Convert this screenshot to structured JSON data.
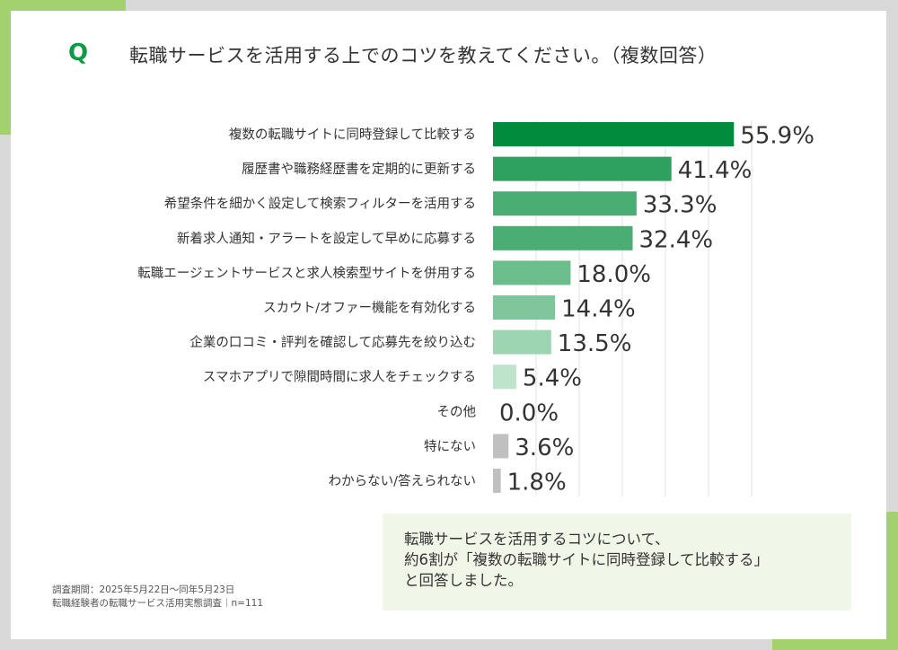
{
  "header": {
    "q_mark": "Q",
    "title": "転職サービスを活用する上でのコツを教えてください。（複数回答）"
  },
  "colors": {
    "accent": "#a3d16e",
    "q_mark": "#0f9a48",
    "gray_bar": "#c0c0c0"
  },
  "chart_data": {
    "type": "bar",
    "orientation": "horizontal",
    "title": "転職サービスを活用する上でのコツを教えてください。（複数回答）",
    "categories": [
      "複数の転職サイトに同時登録して比較する",
      "履歴書や職務経歴書を定期的に更新する",
      "希望条件を細かく設定して検索フィルターを活用する",
      "新着求人通知・アラートを設定して早めに応募する",
      "転職エージェントサービスと求人検索型サイトを併用する",
      "スカウト/オファー機能を有効化する",
      "企業の口コミ・評判を確認して応募先を絞り込む",
      "スマホアプリで隙間時間に求人をチェックする",
      "その他",
      "特にない",
      "わからない/答えられない"
    ],
    "values": [
      55.9,
      41.4,
      33.3,
      32.4,
      18.0,
      14.4,
      13.5,
      5.4,
      0.0,
      3.6,
      1.8
    ],
    "value_labels": [
      "55.9%",
      "41.4%",
      "33.3%",
      "32.4%",
      "18.0%",
      "14.4%",
      "13.5%",
      "5.4%",
      "0.0%",
      "3.6%",
      "1.8%"
    ],
    "bar_colors": [
      "#008c3c",
      "#2ea060",
      "#4aae74",
      "#4aae74",
      "#6bbd8c",
      "#80c69c",
      "#9dd4b2",
      "#bde3cb",
      "#bde3cb",
      "#c0c0c0",
      "#c0c0c0"
    ],
    "unit": "%",
    "xlim": [
      0,
      60
    ],
    "grid": true,
    "xlabel": "",
    "ylabel": ""
  },
  "summary": {
    "lines": [
      "転職サービスを活用するコツについて、",
      "約6割が「複数の転職サイトに同時登録して比較する」",
      "と回答しました。"
    ]
  },
  "footnote": {
    "period": "調査期間：2025年5月22日～同年5月23日",
    "survey": "転職経験者の転職サービス活用実態調査｜n=111"
  }
}
